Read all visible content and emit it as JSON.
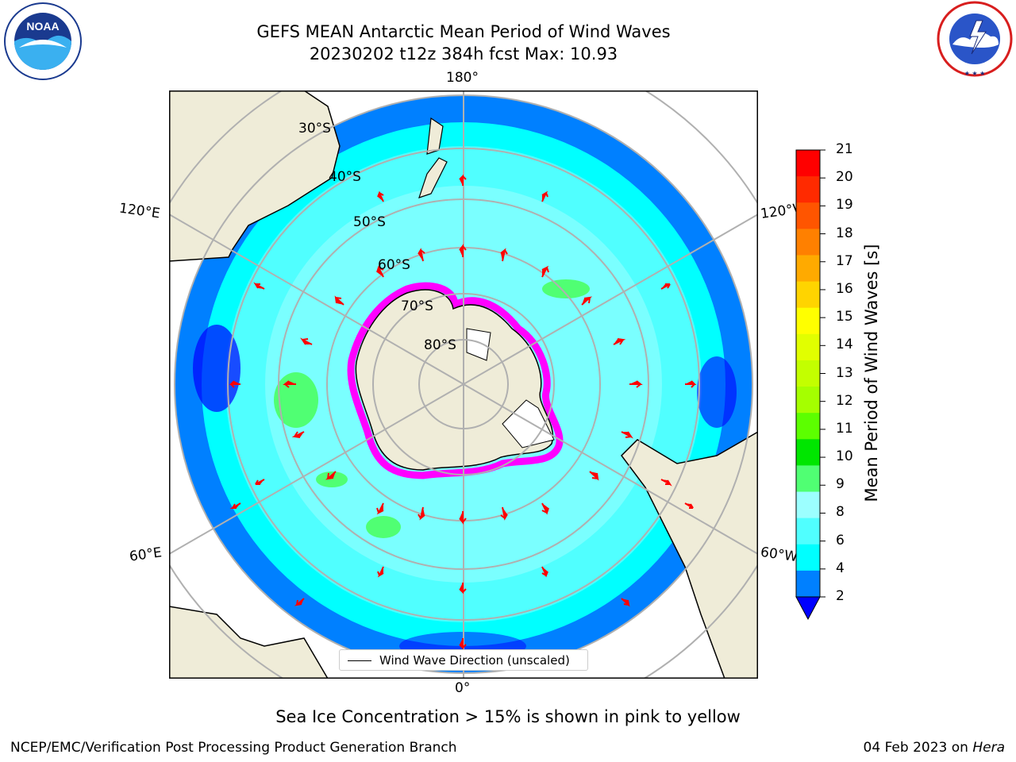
{
  "header": {
    "title_line1": "GEFS MEAN Antarctic Mean Period of Wind Waves",
    "title_line2": "20230202 t12z 384h fcst   Max: 10.93"
  },
  "logos": {
    "left": {
      "icon": "noaa-logo",
      "text": "NOAA"
    },
    "right": {
      "icon": "nws-logo",
      "text": "NATIONAL WEATHER SERVICE"
    }
  },
  "map": {
    "longitude_labels": {
      "top": "180°",
      "left": "120°E",
      "right": "120°W",
      "lower_left": "60°E",
      "lower_right": "60°W",
      "bottom": "0°"
    },
    "latitude_labels": [
      "30°S",
      "40°S",
      "50°S",
      "60°S",
      "70°S",
      "80°S"
    ],
    "legend_label": "Wind Wave Direction (unscaled)"
  },
  "colorbar": {
    "label": "Mean Period of Wind Waves [s]",
    "ticks": [
      "21",
      "20",
      "19",
      "18",
      "17",
      "16",
      "15",
      "14",
      "13",
      "12",
      "11",
      "10",
      "9",
      "8",
      "6",
      "4",
      "2"
    ],
    "colors": [
      "#ff0000",
      "#ff2a00",
      "#ff5500",
      "#ff8000",
      "#ffaa00",
      "#ffd400",
      "#ffff00",
      "#e1ff00",
      "#c3ff00",
      "#a5ff00",
      "#5cff00",
      "#00e600",
      "#50ff73",
      "#9cffff",
      "#50ffff",
      "#00ffff",
      "#0080ff"
    ],
    "under_color": "#0000ff"
  },
  "colors": {
    "land": "#efecd8",
    "ocean_2_4": "#0080ff",
    "ocean_4_6": "#00ffff",
    "ocean_6_8": "#50ffff",
    "ocean_8_9": "#9cffff",
    "ocean_9_10": "#50ff73",
    "arrow": "#ff0000",
    "sea_ice": "#ff00ff"
  },
  "footer": {
    "note": "Sea Ice Concentration > 15% is shown in pink to yellow",
    "credit": "NCEP/EMC/Verification Post Processing Product Generation Branch",
    "date": "04 Feb 2023 on ",
    "machine": "Hera"
  }
}
